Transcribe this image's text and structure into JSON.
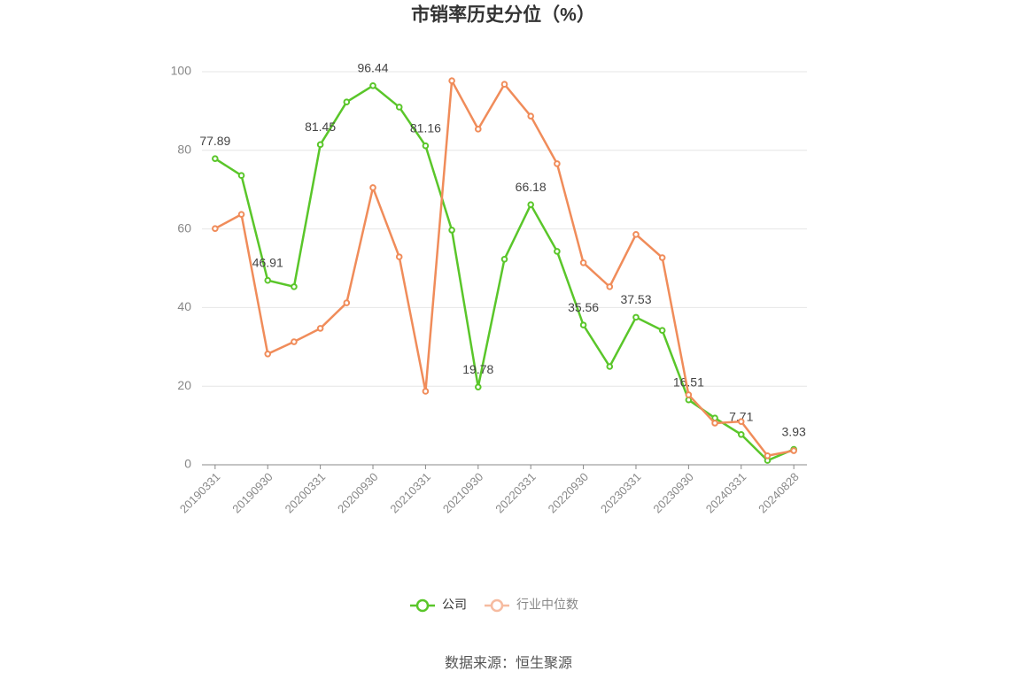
{
  "chart_data": {
    "type": "line",
    "title": "市销率历史分位（%）",
    "categories": [
      "20190331",
      null,
      "20190930",
      null,
      "20200331",
      null,
      "20200930",
      null,
      "20210331",
      null,
      "20210930",
      null,
      "20220331",
      null,
      "20220930",
      null,
      "20230331",
      null,
      "20230930",
      null,
      "20240331",
      null,
      "20240828"
    ],
    "series": [
      {
        "name": "公司",
        "color": "#5ac62a",
        "values": [
          77.89,
          73.6,
          46.91,
          45.3,
          81.45,
          92.3,
          96.44,
          91.0,
          81.16,
          59.7,
          19.78,
          52.3,
          66.18,
          54.3,
          35.56,
          25.0,
          37.53,
          34.2,
          16.51,
          11.9,
          7.71,
          1.1,
          3.93
        ],
        "value_labels": [
          "77.89",
          null,
          "46.91",
          null,
          "81.45",
          null,
          "96.44",
          null,
          "81.16",
          null,
          "19.78",
          null,
          "66.18",
          null,
          "35.56",
          null,
          "37.53",
          null,
          "16.51",
          null,
          "7.71",
          null,
          "3.93"
        ]
      },
      {
        "name": "行业中位数",
        "color": "#f08c5a",
        "values": [
          60.1,
          63.7,
          28.2,
          31.3,
          34.7,
          41.2,
          70.5,
          52.9,
          18.7,
          97.7,
          85.4,
          96.8,
          88.7,
          76.6,
          51.4,
          45.3,
          58.6,
          52.7,
          17.8,
          10.6,
          11.0,
          2.3,
          3.6
        ]
      }
    ],
    "ylim": [
      0,
      100
    ],
    "yticks": [
      0,
      20,
      40,
      60,
      80,
      100
    ],
    "grid": true,
    "legend": "bottom",
    "source": "数据来源：恒生聚源"
  }
}
